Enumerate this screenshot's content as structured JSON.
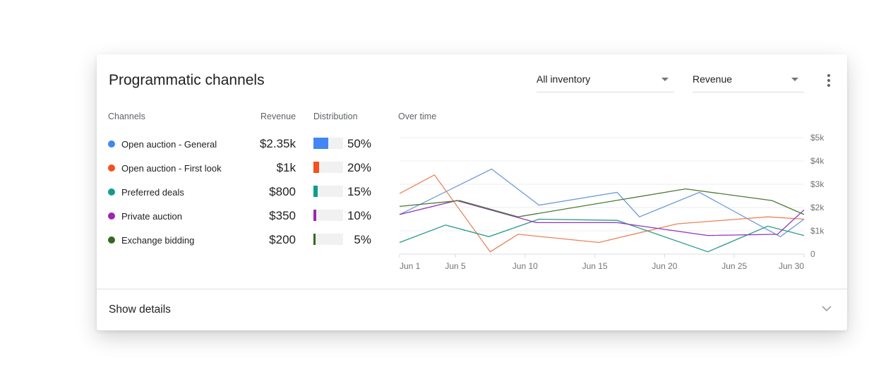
{
  "card": {
    "title": "Programmatic channels",
    "filters": [
      {
        "label": "All inventory"
      },
      {
        "label": "Revenue"
      }
    ],
    "more_icon": "more-vert-icon"
  },
  "table": {
    "headers": {
      "channels": "Channels",
      "revenue": "Revenue",
      "distribution": "Distribution",
      "over_time": "Over time"
    },
    "rows": [
      {
        "name": "Open auction - General",
        "revenue": "$2.35k",
        "percent": "50%",
        "share": 50,
        "color": "#4285f4"
      },
      {
        "name": "Open auction - First look",
        "revenue": "$1k",
        "percent": "20%",
        "share": 20,
        "color": "#f4511e"
      },
      {
        "name": "Preferred deals",
        "revenue": "$800",
        "percent": "15%",
        "share": 15,
        "color": "#0f9d8a"
      },
      {
        "name": "Private auction",
        "revenue": "$350",
        "percent": "10%",
        "share": 10,
        "color": "#9c27b0"
      },
      {
        "name": "Exchange bidding",
        "revenue": "$200",
        "percent": "5%",
        "share": 5,
        "color": "#33691e"
      }
    ]
  },
  "footer": {
    "show_details_label": "Show details",
    "chevron_icon": "chevron-down-icon"
  },
  "chart_data": {
    "type": "line",
    "title": "Over time",
    "xlabel": "",
    "ylabel": "",
    "x_ticks": [
      "Jun 1",
      "Jun 5",
      "Jun 10",
      "Jun 15",
      "Jun 20",
      "Jun 25",
      "Jun 30"
    ],
    "y_ticks": [
      "0",
      "$1k",
      "$2k",
      "$3k",
      "$4k",
      "$5k"
    ],
    "ylim": [
      0,
      5000
    ],
    "xlim": [
      1,
      30
    ],
    "grid": true,
    "y_axis_position": "right",
    "series": [
      {
        "name": "Open auction - General",
        "color": "#6d9bd9",
        "points": [
          [
            1,
            1700
          ],
          [
            7.6,
            3650
          ],
          [
            11,
            2100
          ],
          [
            16.6,
            2650
          ],
          [
            18.2,
            1600
          ],
          [
            22.5,
            2650
          ],
          [
            28.3,
            750
          ],
          [
            30,
            1500
          ]
        ]
      },
      {
        "name": "Open auction - First look",
        "color": "#e9835a",
        "points": [
          [
            1,
            2600
          ],
          [
            3.5,
            3400
          ],
          [
            7.5,
            100
          ],
          [
            9.5,
            850
          ],
          [
            15.3,
            500
          ],
          [
            20.9,
            1300
          ],
          [
            27.4,
            1600
          ],
          [
            30,
            1500
          ]
        ]
      },
      {
        "name": "Preferred deals",
        "color": "#2a9a8b",
        "points": [
          [
            1,
            500
          ],
          [
            4.3,
            1250
          ],
          [
            7.4,
            750
          ],
          [
            11,
            1500
          ],
          [
            16.6,
            1450
          ],
          [
            23.1,
            100
          ],
          [
            27.4,
            1200
          ],
          [
            30,
            800
          ]
        ]
      },
      {
        "name": "Private auction",
        "color": "#9334b8",
        "points": [
          [
            1,
            1700
          ],
          [
            5.1,
            2300
          ],
          [
            10.8,
            1350
          ],
          [
            16.6,
            1350
          ],
          [
            23.1,
            800
          ],
          [
            28.1,
            850
          ],
          [
            30,
            1900
          ]
        ]
      },
      {
        "name": "Exchange bidding",
        "color": "#4c7a35",
        "points": [
          [
            1,
            2050
          ],
          [
            5.3,
            2300
          ],
          [
            9.5,
            1600
          ],
          [
            21.5,
            2800
          ],
          [
            27.7,
            2300
          ],
          [
            30,
            1700
          ]
        ]
      }
    ]
  }
}
